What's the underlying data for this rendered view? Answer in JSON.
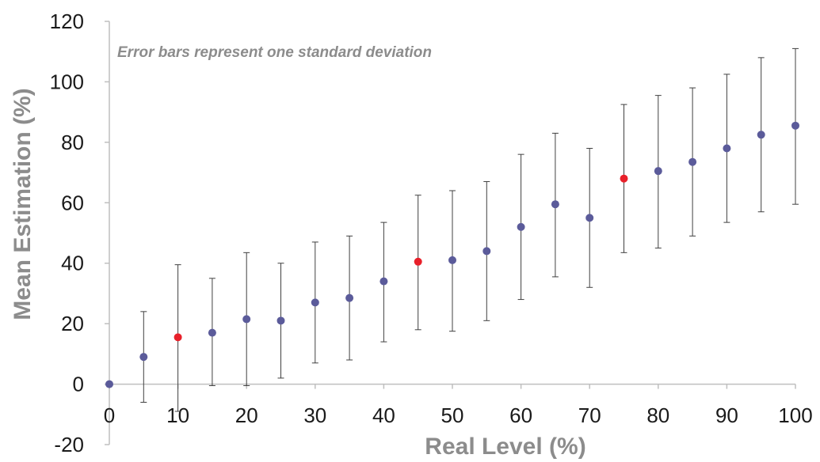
{
  "chart_data": {
    "type": "scatter",
    "title": "",
    "xlabel": "Real Level (%)",
    "ylabel": "Mean Estimation (%)",
    "annotation": "Error bars represent one standard deviation",
    "xlim": [
      0,
      100
    ],
    "ylim": [
      -20,
      120
    ],
    "xticks": [
      "0",
      "10",
      "20",
      "30",
      "40",
      "50",
      "60",
      "70",
      "80",
      "90",
      "100"
    ],
    "yticks": [
      "-20",
      "0",
      "20",
      "40",
      "60",
      "80",
      "100",
      "120"
    ],
    "grid": false,
    "legend": "none",
    "colors": {
      "point": "#5b5b9a",
      "highlight": "#e8202a",
      "error_bar": "#404040",
      "axis": "#bfbfbf"
    },
    "x": [
      0,
      5,
      10,
      15,
      20,
      25,
      30,
      35,
      40,
      45,
      50,
      55,
      60,
      65,
      70,
      75,
      80,
      85,
      90,
      95,
      100
    ],
    "y": [
      0,
      9,
      15.5,
      17,
      21.5,
      21,
      27,
      28.5,
      34,
      40.5,
      41,
      44,
      52,
      59.5,
      55,
      68,
      70.5,
      73.5,
      78,
      82.5,
      85.5
    ],
    "y_lower": [
      null,
      -6,
      -9,
      -0.5,
      -0.5,
      2,
      7,
      8,
      14,
      18,
      17.5,
      21,
      28,
      35.5,
      32,
      43.5,
      45,
      49,
      53.5,
      57,
      59.5
    ],
    "y_upper": [
      null,
      24,
      39.5,
      35,
      43.5,
      40,
      47,
      49,
      53.5,
      62.5,
      64,
      67,
      76,
      83,
      78,
      92.5,
      95.5,
      98,
      102.5,
      108,
      111
    ],
    "highlighted": [
      false,
      false,
      true,
      false,
      false,
      false,
      false,
      false,
      false,
      true,
      false,
      false,
      false,
      false,
      false,
      true,
      false,
      false,
      false,
      false,
      false
    ]
  }
}
